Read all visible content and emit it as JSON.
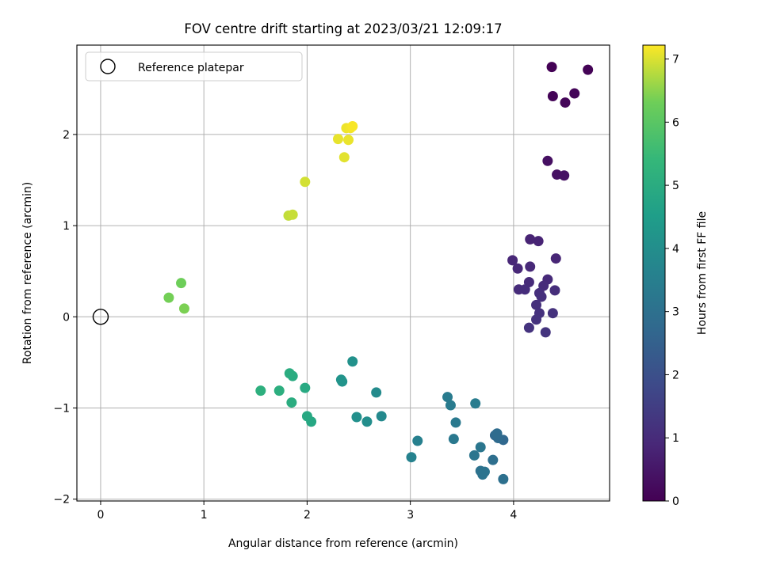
{
  "chart_data": {
    "type": "scatter",
    "title": "FOV centre drift starting at 2023/03/21 12:09:17",
    "xlabel": "Angular distance from reference (arcmin)",
    "ylabel": "Rotation from reference (arcmin)",
    "xlim": [
      -0.23,
      4.93
    ],
    "ylim": [
      -2.02,
      2.98
    ],
    "x_ticks": [
      0,
      1,
      2,
      3,
      4
    ],
    "y_ticks": [
      -2,
      -1,
      0,
      1,
      2
    ],
    "grid": true,
    "legend": {
      "position": "upper-left",
      "entries": [
        "Reference platepar"
      ]
    },
    "reference_point": {
      "x": 0,
      "y": 0
    },
    "colorbar": {
      "label": "Hours from first FF file",
      "min": 0,
      "max": 7.22,
      "ticks": [
        0,
        1,
        2,
        3,
        4,
        5,
        6,
        7
      ],
      "colormap": "viridis"
    },
    "points": [
      {
        "x": 4.37,
        "y": 2.74,
        "t": 0.02
      },
      {
        "x": 4.72,
        "y": 2.71,
        "t": 0.05
      },
      {
        "x": 4.38,
        "y": 2.42,
        "t": 0.08
      },
      {
        "x": 4.59,
        "y": 2.45,
        "t": 0.1
      },
      {
        "x": 4.5,
        "y": 2.35,
        "t": 0.12
      },
      {
        "x": 4.33,
        "y": 1.71,
        "t": 0.35
      },
      {
        "x": 4.42,
        "y": 1.56,
        "t": 0.38
      },
      {
        "x": 4.49,
        "y": 1.55,
        "t": 0.4
      },
      {
        "x": 4.16,
        "y": 0.85,
        "t": 0.8
      },
      {
        "x": 4.24,
        "y": 0.83,
        "t": 0.82
      },
      {
        "x": 4.41,
        "y": 0.64,
        "t": 0.85
      },
      {
        "x": 3.99,
        "y": 0.62,
        "t": 0.88
      },
      {
        "x": 4.04,
        "y": 0.53,
        "t": 0.9
      },
      {
        "x": 4.16,
        "y": 0.55,
        "t": 0.92
      },
      {
        "x": 4.33,
        "y": 0.41,
        "t": 0.95
      },
      {
        "x": 4.15,
        "y": 0.38,
        "t": 0.98
      },
      {
        "x": 4.29,
        "y": 0.34,
        "t": 1.0
      },
      {
        "x": 4.05,
        "y": 0.3,
        "t": 1.02
      },
      {
        "x": 4.11,
        "y": 0.3,
        "t": 1.05
      },
      {
        "x": 4.4,
        "y": 0.29,
        "t": 1.07
      },
      {
        "x": 4.25,
        "y": 0.26,
        "t": 1.09
      },
      {
        "x": 4.27,
        "y": 0.22,
        "t": 1.11
      },
      {
        "x": 4.22,
        "y": 0.13,
        "t": 1.13
      },
      {
        "x": 4.25,
        "y": 0.04,
        "t": 1.15
      },
      {
        "x": 4.38,
        "y": 0.04,
        "t": 1.17
      },
      {
        "x": 4.22,
        "y": -0.03,
        "t": 1.19
      },
      {
        "x": 4.15,
        "y": -0.12,
        "t": 1.21
      },
      {
        "x": 4.31,
        "y": -0.17,
        "t": 1.23
      },
      {
        "x": 3.9,
        "y": -1.35,
        "t": 2.7
      },
      {
        "x": 3.82,
        "y": -1.3,
        "t": 2.75
      },
      {
        "x": 3.85,
        "y": -1.33,
        "t": 2.8
      },
      {
        "x": 3.84,
        "y": -1.28,
        "t": 2.85
      },
      {
        "x": 3.8,
        "y": -1.57,
        "t": 2.95
      },
      {
        "x": 3.9,
        "y": -1.78,
        "t": 3.0
      },
      {
        "x": 3.68,
        "y": -1.69,
        "t": 3.05
      },
      {
        "x": 3.7,
        "y": -1.73,
        "t": 3.08
      },
      {
        "x": 3.72,
        "y": -1.7,
        "t": 3.1
      },
      {
        "x": 3.62,
        "y": -1.52,
        "t": 3.15
      },
      {
        "x": 3.68,
        "y": -1.43,
        "t": 3.18
      },
      {
        "x": 3.42,
        "y": -1.34,
        "t": 3.25
      },
      {
        "x": 3.44,
        "y": -1.16,
        "t": 3.3
      },
      {
        "x": 3.39,
        "y": -0.97,
        "t": 3.35
      },
      {
        "x": 3.36,
        "y": -0.88,
        "t": 3.38
      },
      {
        "x": 3.63,
        "y": -0.95,
        "t": 3.4
      },
      {
        "x": 3.07,
        "y": -1.36,
        "t": 3.55
      },
      {
        "x": 3.01,
        "y": -1.54,
        "t": 3.6
      },
      {
        "x": 2.72,
        "y": -1.09,
        "t": 3.85
      },
      {
        "x": 2.67,
        "y": -0.83,
        "t": 3.9
      },
      {
        "x": 2.58,
        "y": -1.15,
        "t": 4.0
      },
      {
        "x": 2.48,
        "y": -1.1,
        "t": 4.05
      },
      {
        "x": 2.44,
        "y": -0.49,
        "t": 4.1
      },
      {
        "x": 2.34,
        "y": -0.71,
        "t": 4.15
      },
      {
        "x": 2.33,
        "y": -0.69,
        "t": 4.18
      },
      {
        "x": 2.04,
        "y": -1.15,
        "t": 4.85
      },
      {
        "x": 2.0,
        "y": -1.09,
        "t": 4.88
      },
      {
        "x": 1.98,
        "y": -0.78,
        "t": 4.92
      },
      {
        "x": 1.86,
        "y": -0.65,
        "t": 4.98
      },
      {
        "x": 1.83,
        "y": -0.62,
        "t": 5.0
      },
      {
        "x": 1.85,
        "y": -0.94,
        "t": 5.02
      },
      {
        "x": 1.73,
        "y": -0.81,
        "t": 5.08
      },
      {
        "x": 1.55,
        "y": -0.81,
        "t": 5.12
      },
      {
        "x": 0.78,
        "y": 0.37,
        "t": 6.3
      },
      {
        "x": 0.66,
        "y": 0.21,
        "t": 6.35
      },
      {
        "x": 0.81,
        "y": 0.09,
        "t": 6.4
      },
      {
        "x": 1.82,
        "y": 1.11,
        "t": 6.85
      },
      {
        "x": 1.86,
        "y": 1.12,
        "t": 6.88
      },
      {
        "x": 1.98,
        "y": 1.48,
        "t": 6.95
      },
      {
        "x": 2.36,
        "y": 1.75,
        "t": 7.05
      },
      {
        "x": 2.3,
        "y": 1.95,
        "t": 7.08
      },
      {
        "x": 2.4,
        "y": 1.94,
        "t": 7.1
      },
      {
        "x": 2.38,
        "y": 2.07,
        "t": 7.12
      },
      {
        "x": 2.42,
        "y": 2.07,
        "t": 7.15
      },
      {
        "x": 2.44,
        "y": 2.09,
        "t": 7.18
      }
    ]
  }
}
